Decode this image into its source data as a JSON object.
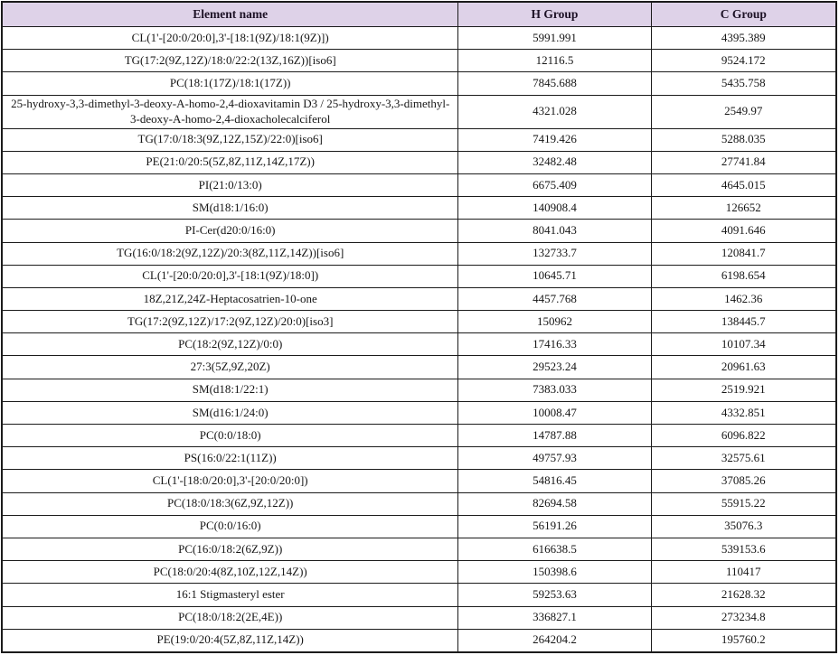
{
  "table": {
    "columns": [
      "Element name",
      "H Group",
      "C Group"
    ],
    "rows": [
      [
        "CL(1'-[20:0/20:0],3'-[18:1(9Z)/18:1(9Z)])",
        "5991.991",
        "4395.389"
      ],
      [
        "TG(17:2(9Z,12Z)/18:0/22:2(13Z,16Z))[iso6]",
        "12116.5",
        "9524.172"
      ],
      [
        "PC(18:1(17Z)/18:1(17Z))",
        "7845.688",
        "5435.758"
      ],
      [
        "25-hydroxy-3,3-dimethyl-3-deoxy-A-homo-2,4-dioxavitamin D3 / 25-hydroxy-3,3-dimethyl-3-deoxy-A-homo-2,4-dioxacholecalciferol",
        "4321.028",
        "2549.97"
      ],
      [
        "TG(17:0/18:3(9Z,12Z,15Z)/22:0)[iso6]",
        "7419.426",
        "5288.035"
      ],
      [
        "PE(21:0/20:5(5Z,8Z,11Z,14Z,17Z))",
        "32482.48",
        "27741.84"
      ],
      [
        "PI(21:0/13:0)",
        "6675.409",
        "4645.015"
      ],
      [
        "SM(d18:1/16:0)",
        "140908.4",
        "126652"
      ],
      [
        "PI-Cer(d20:0/16:0)",
        "8041.043",
        "4091.646"
      ],
      [
        "TG(16:0/18:2(9Z,12Z)/20:3(8Z,11Z,14Z))[iso6]",
        "132733.7",
        "120841.7"
      ],
      [
        "CL(1'-[20:0/20:0],3'-[18:1(9Z)/18:0])",
        "10645.71",
        "6198.654"
      ],
      [
        "18Z,21Z,24Z-Heptacosatrien-10-one",
        "4457.768",
        "1462.36"
      ],
      [
        "TG(17:2(9Z,12Z)/17:2(9Z,12Z)/20:0)[iso3]",
        "150962",
        "138445.7"
      ],
      [
        "PC(18:2(9Z,12Z)/0:0)",
        "17416.33",
        "10107.34"
      ],
      [
        "27:3(5Z,9Z,20Z)",
        "29523.24",
        "20961.63"
      ],
      [
        "SM(d18:1/22:1)",
        "7383.033",
        "2519.921"
      ],
      [
        "SM(d16:1/24:0)",
        "10008.47",
        "4332.851"
      ],
      [
        "PC(0:0/18:0)",
        "14787.88",
        "6096.822"
      ],
      [
        "PS(16:0/22:1(11Z))",
        "49757.93",
        "32575.61"
      ],
      [
        "CL(1'-[18:0/20:0],3'-[20:0/20:0])",
        "54816.45",
        "37085.26"
      ],
      [
        "PC(18:0/18:3(6Z,9Z,12Z))",
        "82694.58",
        "55915.22"
      ],
      [
        "PC(0:0/16:0)",
        "56191.26",
        "35076.3"
      ],
      [
        "PC(16:0/18:2(6Z,9Z))",
        "616638.5",
        "539153.6"
      ],
      [
        "PC(18:0/20:4(8Z,10Z,12Z,14Z))",
        "150398.6",
        "110417"
      ],
      [
        "16:1 Stigmasteryl ester",
        "59253.63",
        "21628.32"
      ],
      [
        "PC(18:0/18:2(2E,4E))",
        "336827.1",
        "273234.8"
      ],
      [
        "PE(19:0/20:4(5Z,8Z,11Z,14Z))",
        "264204.2",
        "195760.2"
      ]
    ],
    "colors": {
      "header_background": "#ded2e8",
      "border": "#1b1b1b",
      "body_text": "#161616"
    }
  }
}
